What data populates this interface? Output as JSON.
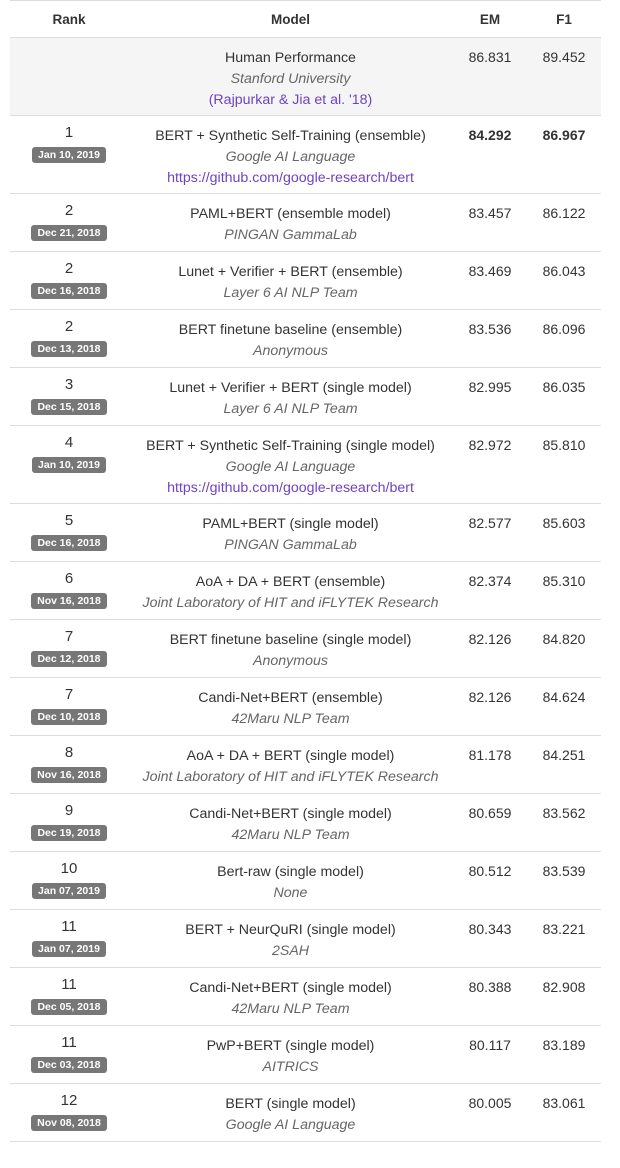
{
  "header": {
    "rank": "Rank",
    "model": "Model",
    "em": "EM",
    "f1": "F1"
  },
  "rows": [
    {
      "rank": "",
      "date": "",
      "model": "Human Performance",
      "org": "Stanford University",
      "link": "(Rajpurkar & Jia et al. '18)",
      "em": "86.831",
      "f1": "89.452"
    },
    {
      "rank": "1",
      "date": "Jan 10, 2019",
      "model": "BERT + Synthetic Self-Training (ensemble)",
      "org": "Google AI Language",
      "link": "https://github.com/google-research/bert",
      "em": "84.292",
      "f1": "86.967"
    },
    {
      "rank": "2",
      "date": "Dec 21, 2018",
      "model": "PAML+BERT (ensemble model)",
      "org": "PINGAN GammaLab",
      "link": "",
      "em": "83.457",
      "f1": "86.122"
    },
    {
      "rank": "2",
      "date": "Dec 16, 2018",
      "model": "Lunet + Verifier + BERT (ensemble)",
      "org": "Layer 6 AI NLP Team",
      "link": "",
      "em": "83.469",
      "f1": "86.043"
    },
    {
      "rank": "2",
      "date": "Dec 13, 2018",
      "model": "BERT finetune baseline (ensemble)",
      "org": "Anonymous",
      "link": "",
      "em": "83.536",
      "f1": "86.096"
    },
    {
      "rank": "3",
      "date": "Dec 15, 2018",
      "model": "Lunet + Verifier + BERT (single model)",
      "org": "Layer 6 AI NLP Team",
      "link": "",
      "em": "82.995",
      "f1": "86.035"
    },
    {
      "rank": "4",
      "date": "Jan 10, 2019",
      "model": "BERT + Synthetic Self-Training (single model)",
      "org": "Google AI Language",
      "link": "https://github.com/google-research/bert",
      "em": "82.972",
      "f1": "85.810"
    },
    {
      "rank": "5",
      "date": "Dec 16, 2018",
      "model": "PAML+BERT (single model)",
      "org": "PINGAN GammaLab",
      "link": "",
      "em": "82.577",
      "f1": "85.603"
    },
    {
      "rank": "6",
      "date": "Nov 16, 2018",
      "model": "AoA + DA + BERT (ensemble)",
      "org": "Joint Laboratory of HIT and iFLYTEK Research",
      "link": "",
      "em": "82.374",
      "f1": "85.310"
    },
    {
      "rank": "7",
      "date": "Dec 12, 2018",
      "model": "BERT finetune baseline (single model)",
      "org": "Anonymous",
      "link": "",
      "em": "82.126",
      "f1": "84.820"
    },
    {
      "rank": "7",
      "date": "Dec 10, 2018",
      "model": "Candi-Net+BERT (ensemble)",
      "org": "42Maru NLP Team",
      "link": "",
      "em": "82.126",
      "f1": "84.624"
    },
    {
      "rank": "8",
      "date": "Nov 16, 2018",
      "model": "AoA + DA + BERT (single model)",
      "org": "Joint Laboratory of HIT and iFLYTEK Research",
      "link": "",
      "em": "81.178",
      "f1": "84.251"
    },
    {
      "rank": "9",
      "date": "Dec 19, 2018",
      "model": "Candi-Net+BERT (single model)",
      "org": "42Maru NLP Team",
      "link": "",
      "em": "80.659",
      "f1": "83.562"
    },
    {
      "rank": "10",
      "date": "Jan 07, 2019",
      "model": "Bert-raw (single model)",
      "org": "None",
      "link": "",
      "em": "80.512",
      "f1": "83.539"
    },
    {
      "rank": "11",
      "date": "Jan 07, 2019",
      "model": "BERT + NeurQuRI (single model)",
      "org": "2SAH",
      "link": "",
      "em": "80.343",
      "f1": "83.221"
    },
    {
      "rank": "11",
      "date": "Dec 05, 2018",
      "model": "Candi-Net+BERT (single model)",
      "org": "42Maru NLP Team",
      "link": "",
      "em": "80.388",
      "f1": "82.908"
    },
    {
      "rank": "11",
      "date": "Dec 03, 2018",
      "model": "PwP+BERT (single model)",
      "org": "AITRICS",
      "link": "",
      "em": "80.117",
      "f1": "83.189"
    },
    {
      "rank": "12",
      "date": "Nov 08, 2018",
      "model": "BERT (single model)",
      "org": "Google AI Language",
      "link": "",
      "em": "80.005",
      "f1": "83.061"
    }
  ]
}
